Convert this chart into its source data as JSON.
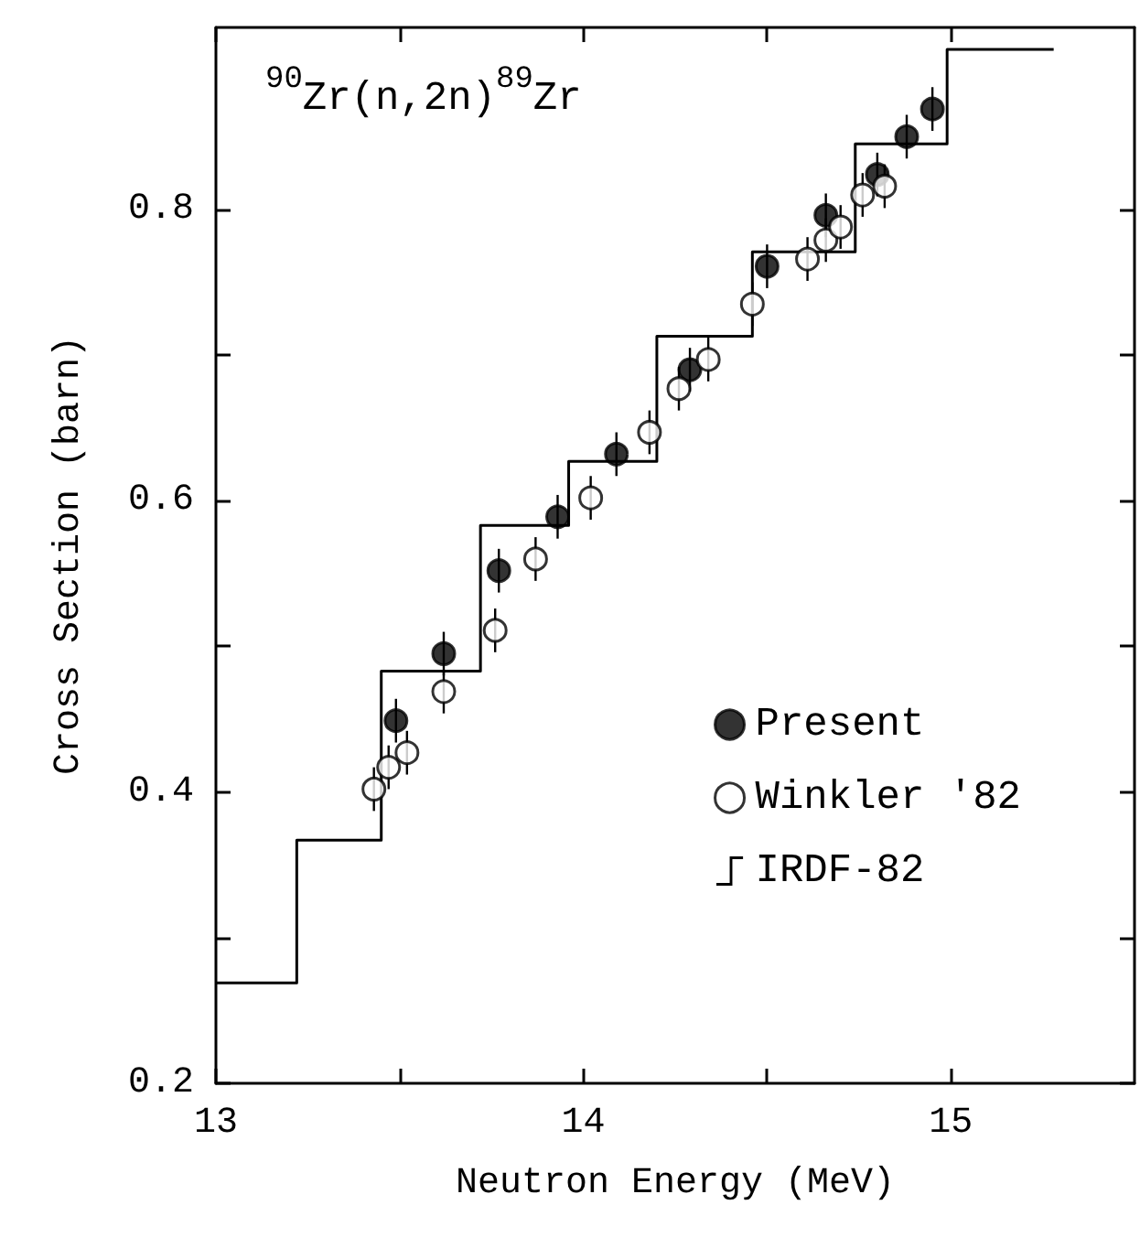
{
  "chart_data": {
    "type": "scatter",
    "title": "$^{90}$Zr(n,2n)$^{89}$Zr",
    "xlabel": "Neutron Energy (MeV)",
    "ylabel": "Cross Section (barn)",
    "xlim": [
      13,
      15.5
    ],
    "ylim": [
      0.2,
      0.925
    ],
    "xticks": [
      13,
      {
        "value": 13.5,
        "label": null
      },
      14,
      {
        "value": 14.5,
        "label": null
      },
      15
    ],
    "yticks": [
      0.2,
      {
        "value": 0.3,
        "label": null
      },
      0.4,
      {
        "value": 0.5,
        "label": null
      },
      0.6,
      {
        "value": 0.7,
        "label": null
      },
      0.8
    ],
    "legend": "right",
    "grid": false,
    "series": [
      {
        "name": "Present",
        "marker": "circle",
        "color": "#000000",
        "x": [
          13.49,
          13.62,
          13.77,
          13.93,
          14.09,
          14.29,
          14.5,
          14.66,
          14.8,
          14.88,
          14.95
        ],
        "values": [
          0.449,
          0.495,
          0.552,
          0.589,
          0.632,
          0.69,
          0.761,
          0.796,
          0.824,
          0.85,
          0.869
        ],
        "errors": [
          0.015,
          0.015,
          0.015,
          0.015,
          0.015,
          0.015,
          0.015,
          0.015,
          0.015,
          0.015,
          0.015
        ]
      },
      {
        "name": "Winkler '82",
        "marker": "circle",
        "color": "#ffffff",
        "x": [
          13.43,
          13.47,
          13.52,
          13.62,
          13.76,
          13.87,
          14.02,
          14.18,
          14.26,
          14.34,
          14.46,
          14.61,
          14.66,
          14.7,
          14.76,
          14.82
        ],
        "values": [
          0.402,
          0.417,
          0.427,
          0.469,
          0.511,
          0.56,
          0.602,
          0.647,
          0.677,
          0.697,
          0.735,
          0.766,
          0.779,
          0.788,
          0.81,
          0.816
        ],
        "errors": [
          0.015,
          0.015,
          0.015,
          0.015,
          0.015,
          0.015,
          0.015,
          0.015,
          0.015,
          0.015,
          0.015,
          0.015,
          0.015,
          0.015,
          0.015,
          0.015
        ]
      },
      {
        "name": "IRDF-82",
        "type": "step",
        "marker": "none",
        "color": "#000000",
        "x": [
          13,
          13.22,
          13.45,
          13.72,
          13.96,
          14.2,
          14.46,
          14.74,
          14.99,
          15.28
        ],
        "values": [
          0.269,
          0.367,
          0.483,
          0.583,
          0.627,
          0.713,
          0.771,
          0.845,
          0.91,
          0.91
        ]
      }
    ]
  }
}
